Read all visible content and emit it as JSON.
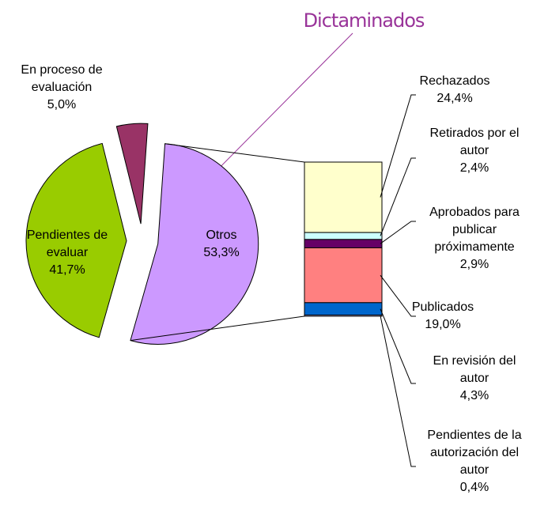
{
  "chart_data": {
    "type": "pie-of-bar",
    "title": "Dictaminados",
    "categories": [
      "Otros",
      "Pendientes de evaluar",
      "En proceso de evaluación"
    ],
    "values": [
      53.3,
      41.7,
      5.0
    ],
    "value_labels": [
      "53,3%",
      "41,7%",
      "5,0%"
    ],
    "colors": [
      "#cc99ff",
      "#99cc00",
      "#993366"
    ],
    "bar": {
      "categories": [
        "Rechazados",
        "Retirados por el autor",
        "Aprobados para publicar próximamente",
        "Publicados",
        "En revisión del autor",
        "Pendientes de la autorización del autor"
      ],
      "values": [
        24.4,
        2.4,
        2.9,
        19.0,
        4.3,
        0.4
      ],
      "value_labels": [
        "24,4%",
        "2,4%",
        "2,9%",
        "19,0%",
        "4,3%",
        "0,4%"
      ],
      "colors": [
        "#ffffcc",
        "#ccffff",
        "#660066",
        "#ff8080",
        "#0066cc",
        "#ccccff"
      ]
    }
  }
}
